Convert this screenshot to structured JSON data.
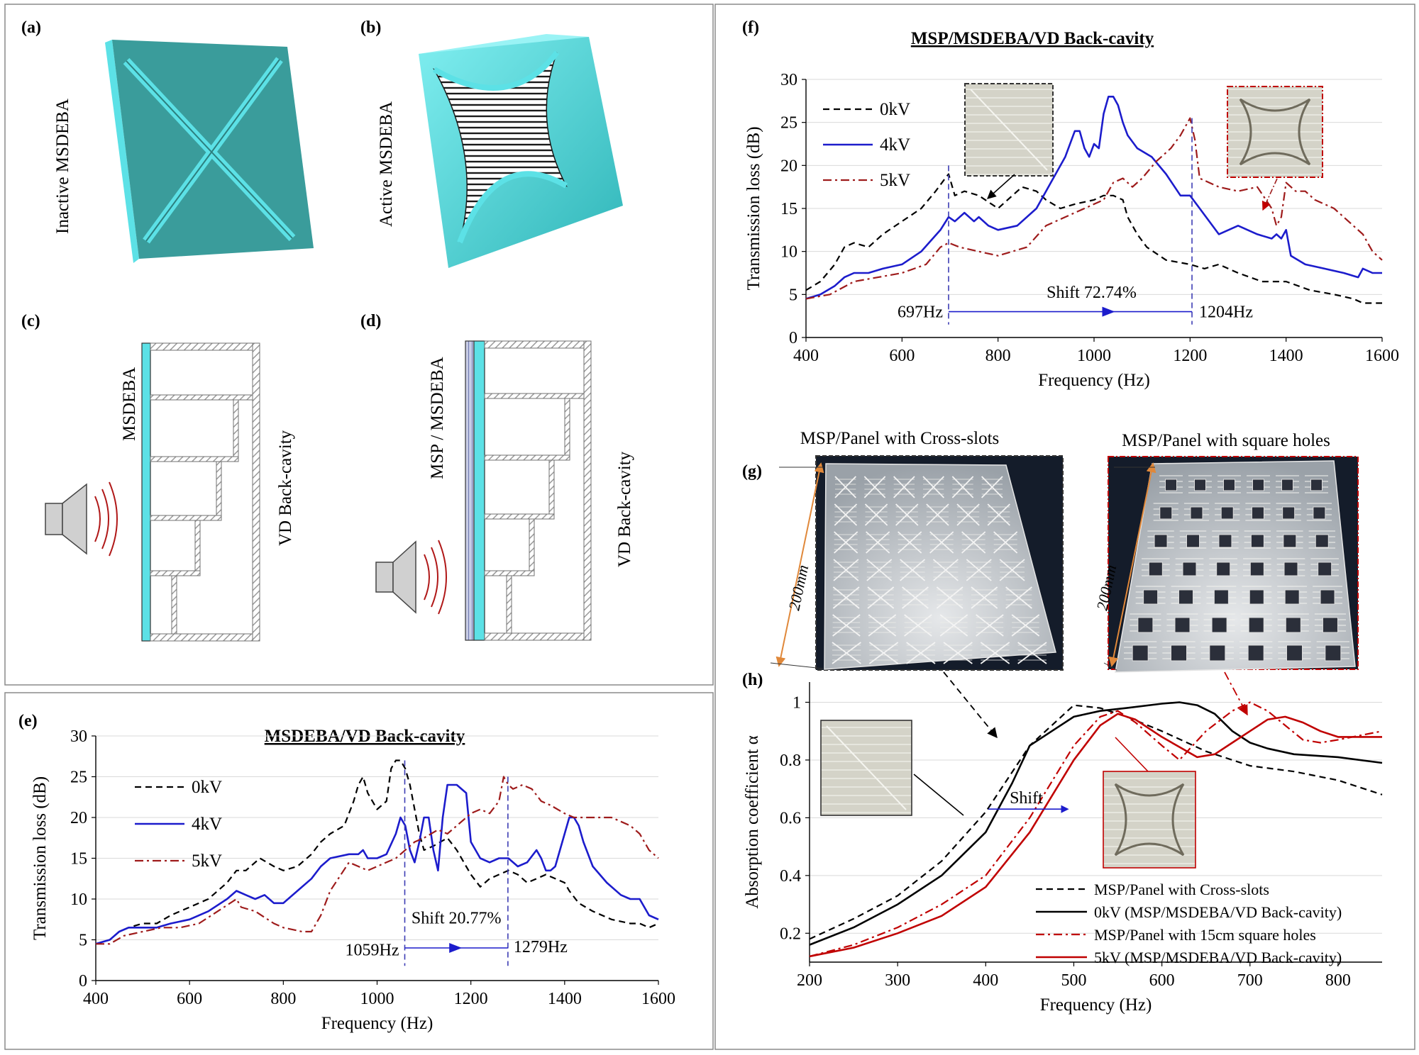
{
  "panels": {
    "a": {
      "label": "(a)",
      "caption": "Inactive MSDEBA"
    },
    "b": {
      "label": "(b)",
      "caption": "Active MSDEBA"
    },
    "c": {
      "label": "(c)",
      "front_label": "MSDEBA",
      "cavity_label": "VD Back-cavity"
    },
    "d": {
      "label": "(d)",
      "front_label": "MSP / MSDEBA",
      "cavity_label": "VD Back-cavity"
    },
    "g": {
      "label": "(g)",
      "photo_left_title": "MSP/Panel with Cross-slots",
      "photo_right_title": "MSP/Panel with square holes",
      "dimension_label": "200mm"
    }
  },
  "annotations": {
    "e": {
      "f1": "1059Hz",
      "f2": "1279Hz",
      "shift": "Shift 20.77%"
    },
    "f": {
      "f1": "697Hz",
      "f2": "1204Hz",
      "shift": "Shift 72.74%"
    },
    "h": {
      "shift": "Shift"
    }
  },
  "colors": {
    "black": "#000000",
    "blue": "#1c1ccc",
    "darkred": "#9e1b1b",
    "red": "#c00000",
    "cyan": "#5ce1e6",
    "teal": "#3a9c9b",
    "marker": "#3c3cb4",
    "dimension": "#e0883a"
  },
  "chart_data": [
    {
      "id": "e",
      "label": "(e)",
      "type": "line",
      "title": "MSDEBA/VD Back-cavity",
      "xlabel": "Frequency (Hz)",
      "ylabel": "Transmission loss (dB)",
      "xlim": [
        400,
        1600
      ],
      "ylim": [
        0,
        30
      ],
      "xticks": [
        400,
        600,
        800,
        1000,
        1200,
        1400,
        1600
      ],
      "yticks": [
        0,
        5,
        10,
        15,
        20,
        25,
        30
      ],
      "legend_position": "left",
      "series": [
        {
          "name": "0kV",
          "style": "dashed",
          "color": "#000000",
          "x": [
            400,
            430,
            450,
            470,
            500,
            530,
            560,
            600,
            640,
            680,
            700,
            720,
            750,
            780,
            800,
            830,
            860,
            880,
            900,
            930,
            950,
            960,
            970,
            980,
            1000,
            1010,
            1020,
            1030,
            1040,
            1050,
            1060,
            1070,
            1080,
            1090,
            1100,
            1120,
            1150,
            1170,
            1200,
            1220,
            1240,
            1260,
            1280,
            1300,
            1320,
            1340,
            1360,
            1380,
            1400,
            1410,
            1430,
            1460,
            1500,
            1540,
            1560,
            1580,
            1600
          ],
          "y": [
            4.5,
            5,
            6,
            6.5,
            7,
            7,
            8,
            9,
            10,
            12,
            13.5,
            13.5,
            15,
            14,
            13.5,
            14,
            15.5,
            17,
            18,
            19,
            22,
            24,
            25,
            23,
            21,
            21.5,
            22,
            26,
            27,
            27,
            26,
            24,
            21,
            18,
            16,
            16.5,
            17.5,
            16,
            13,
            11.5,
            12.5,
            13,
            13.5,
            13,
            12,
            12.5,
            13,
            12.5,
            12,
            11,
            9.5,
            8.5,
            7.5,
            7,
            7,
            6.5,
            7
          ]
        },
        {
          "name": "4kV",
          "style": "solid",
          "color": "#1c1ccc",
          "x": [
            400,
            430,
            450,
            470,
            500,
            530,
            560,
            600,
            640,
            680,
            700,
            720,
            740,
            760,
            780,
            800,
            830,
            860,
            880,
            900,
            940,
            960,
            970,
            980,
            1000,
            1020,
            1040,
            1050,
            1060,
            1070,
            1080,
            1090,
            1100,
            1110,
            1120,
            1130,
            1140,
            1150,
            1170,
            1190,
            1200,
            1220,
            1240,
            1260,
            1280,
            1300,
            1320,
            1340,
            1350,
            1360,
            1370,
            1380,
            1400,
            1410,
            1420,
            1430,
            1440,
            1460,
            1490,
            1520,
            1540,
            1560,
            1580,
            1600
          ],
          "y": [
            4.5,
            5,
            6,
            6.5,
            6.5,
            6.5,
            7,
            7.5,
            8.5,
            10,
            11,
            10.5,
            10,
            10.5,
            9.5,
            9.5,
            11,
            12.5,
            14,
            15,
            15.5,
            15.5,
            16,
            15,
            15,
            15.5,
            18,
            20,
            19,
            16,
            14.5,
            17,
            20,
            20,
            16,
            13.5,
            20,
            24,
            24,
            23,
            17,
            15,
            14.5,
            15,
            15,
            14,
            14.5,
            16,
            15,
            13.5,
            13.5,
            14,
            18,
            20,
            20,
            19,
            17,
            14,
            12,
            10.5,
            10,
            10,
            8,
            7.5
          ]
        },
        {
          "name": "5kV",
          "style": "dashdot",
          "color": "#9e1b1b",
          "x": [
            400,
            430,
            460,
            500,
            540,
            580,
            620,
            660,
            700,
            710,
            740,
            780,
            800,
            840,
            860,
            880,
            900,
            940,
            960,
            980,
            1000,
            1040,
            1080,
            1100,
            1130,
            1150,
            1180,
            1200,
            1220,
            1240,
            1260,
            1270,
            1280,
            1290,
            1310,
            1330,
            1350,
            1370,
            1400,
            1420,
            1460,
            1500,
            1540,
            1560,
            1580,
            1600
          ],
          "y": [
            4.5,
            4.5,
            5.5,
            6,
            6.5,
            6.5,
            7,
            8.5,
            10,
            9,
            8.5,
            7,
            6.5,
            6,
            6,
            8,
            11,
            14.5,
            14,
            13.5,
            14,
            15,
            17,
            17.5,
            18.5,
            18,
            19.5,
            20.5,
            21,
            20.5,
            22,
            25,
            24,
            23.5,
            24,
            23.5,
            22,
            21.5,
            20.5,
            20,
            20,
            20,
            19,
            18,
            16,
            15
          ]
        }
      ]
    },
    {
      "id": "f",
      "label": "(f)",
      "type": "line",
      "title": "MSP/MSDEBA/VD Back-cavity",
      "xlabel": "Frequency (Hz)",
      "ylabel": "Transmission loss (dB)",
      "xlim": [
        400,
        1600
      ],
      "ylim": [
        0,
        30
      ],
      "xticks": [
        400,
        600,
        800,
        1000,
        1200,
        1400,
        1600
      ],
      "yticks": [
        0,
        5,
        10,
        15,
        20,
        25,
        30
      ],
      "legend_position": "top-left",
      "series": [
        {
          "name": "0kV",
          "style": "dashed",
          "color": "#000000",
          "x": [
            400,
            430,
            460,
            480,
            500,
            530,
            560,
            600,
            640,
            670,
            690,
            697,
            710,
            730,
            760,
            800,
            830,
            850,
            880,
            900,
            930,
            960,
            1000,
            1020,
            1040,
            1060,
            1070,
            1090,
            1110,
            1150,
            1200,
            1230,
            1260,
            1300,
            1350,
            1400,
            1450,
            1500,
            1540,
            1560,
            1580,
            1600
          ],
          "y": [
            5.5,
            6.5,
            8.5,
            10.5,
            11,
            10.5,
            12,
            13.5,
            15,
            17,
            18.5,
            19,
            16.5,
            17,
            16.5,
            15,
            16.5,
            17.5,
            17,
            16,
            15,
            15.5,
            16,
            16.5,
            16.5,
            16,
            14,
            12,
            10.5,
            9,
            8.5,
            8,
            8.5,
            7.5,
            6.5,
            6.5,
            5.5,
            5,
            4.5,
            4,
            4,
            4
          ]
        },
        {
          "name": "4kV",
          "style": "solid",
          "color": "#1c1ccc",
          "x": [
            400,
            430,
            460,
            480,
            500,
            530,
            560,
            600,
            640,
            680,
            697,
            710,
            730,
            750,
            760,
            780,
            800,
            840,
            880,
            900,
            940,
            960,
            970,
            980,
            990,
            1000,
            1010,
            1020,
            1030,
            1040,
            1050,
            1060,
            1070,
            1090,
            1120,
            1150,
            1180,
            1200,
            1220,
            1260,
            1300,
            1340,
            1370,
            1380,
            1390,
            1395,
            1400,
            1410,
            1440,
            1480,
            1520,
            1550,
            1560,
            1580,
            1600
          ],
          "y": [
            4.5,
            5,
            6,
            7,
            7.5,
            7.5,
            8,
            8.5,
            10,
            12.5,
            14,
            13.5,
            14.5,
            13.5,
            14,
            13,
            12.5,
            13,
            15,
            17,
            21,
            24,
            24,
            22,
            21,
            22.5,
            22,
            26,
            28,
            28,
            27,
            25,
            23.5,
            22,
            21,
            19,
            16.5,
            16.5,
            15,
            12,
            13,
            12,
            11.5,
            12,
            11.5,
            12,
            12.5,
            9.5,
            8.5,
            8,
            7.5,
            7,
            8,
            7.5,
            7.5
          ]
        },
        {
          "name": "5kV",
          "style": "dashdot",
          "color": "#9e1b1b",
          "x": [
            400,
            450,
            500,
            550,
            600,
            650,
            680,
            697,
            720,
            760,
            800,
            860,
            900,
            940,
            980,
            1000,
            1020,
            1040,
            1060,
            1080,
            1100,
            1130,
            1160,
            1180,
            1200,
            1210,
            1220,
            1240,
            1260,
            1300,
            1340,
            1370,
            1380,
            1390,
            1400,
            1420,
            1440,
            1460,
            1500,
            1540,
            1560,
            1580,
            1600
          ],
          "y": [
            4.5,
            5,
            6.5,
            7,
            7.5,
            8.5,
            10.5,
            11,
            10.5,
            10,
            9.5,
            10.5,
            13,
            14,
            15,
            15.5,
            16,
            18,
            18.5,
            17.5,
            18.5,
            20.5,
            22,
            23.5,
            25.5,
            23,
            18.5,
            18,
            17.5,
            17,
            17.5,
            15,
            13,
            14,
            18,
            17,
            17,
            16,
            15,
            13,
            12,
            10,
            9
          ]
        }
      ]
    },
    {
      "id": "h",
      "label": "(h)",
      "type": "line",
      "title": "",
      "xlabel": "Frequency (Hz)",
      "ylabel": "Absorption coefficient α",
      "xlim": [
        200,
        850
      ],
      "ylim": [
        0.1,
        1.07
      ],
      "xticks": [
        200,
        300,
        400,
        500,
        600,
        700,
        800
      ],
      "yticks": [
        0.2,
        0.4,
        0.6,
        0.8,
        1.0
      ],
      "ytick_labels": [
        "0.2",
        "0.4",
        "0.6",
        "0.8",
        "1"
      ],
      "legend_position": "bottom-right",
      "series": [
        {
          "name": "MSP/Panel with Cross-slots",
          "style": "dashed",
          "color": "#000000",
          "x": [
            200,
            250,
            300,
            350,
            400,
            450,
            500,
            530,
            560,
            600,
            650,
            700,
            750,
            800,
            850
          ],
          "y": [
            0.18,
            0.25,
            0.33,
            0.45,
            0.62,
            0.85,
            0.99,
            0.98,
            0.95,
            0.9,
            0.83,
            0.78,
            0.76,
            0.73,
            0.68
          ]
        },
        {
          "name": "0kV  (MSP/MSDEBA/VD Back-cavity)",
          "style": "solid",
          "color": "#000000",
          "x": [
            200,
            250,
            300,
            350,
            400,
            430,
            450,
            480,
            500,
            530,
            560,
            600,
            620,
            640,
            660,
            680,
            700,
            720,
            750,
            800,
            850
          ],
          "y": [
            0.16,
            0.22,
            0.3,
            0.4,
            0.55,
            0.72,
            0.85,
            0.91,
            0.95,
            0.97,
            0.98,
            0.995,
            1.0,
            0.99,
            0.96,
            0.9,
            0.86,
            0.84,
            0.82,
            0.81,
            0.79
          ]
        },
        {
          "name": "MSP/Panel with 15cm square holes",
          "style": "dashdot",
          "color": "#c00000",
          "x": [
            200,
            250,
            300,
            350,
            400,
            450,
            500,
            530,
            550,
            570,
            600,
            620,
            650,
            680,
            700,
            720,
            740,
            760,
            780,
            800,
            850
          ],
          "y": [
            0.12,
            0.16,
            0.22,
            0.3,
            0.4,
            0.6,
            0.85,
            0.95,
            0.97,
            0.93,
            0.85,
            0.8,
            0.9,
            0.97,
            1.0,
            0.97,
            0.92,
            0.87,
            0.86,
            0.87,
            0.9
          ]
        },
        {
          "name": "5kV  (MSP/MSDEBA/VD Back-cavity)",
          "style": "solid",
          "color": "#c00000",
          "x": [
            200,
            250,
            300,
            350,
            400,
            450,
            500,
            530,
            550,
            570,
            600,
            640,
            660,
            680,
            700,
            720,
            740,
            760,
            780,
            800,
            850
          ],
          "y": [
            0.12,
            0.15,
            0.2,
            0.26,
            0.36,
            0.55,
            0.8,
            0.92,
            0.96,
            0.94,
            0.88,
            0.81,
            0.82,
            0.86,
            0.9,
            0.94,
            0.95,
            0.93,
            0.9,
            0.88,
            0.88
          ]
        }
      ]
    }
  ]
}
